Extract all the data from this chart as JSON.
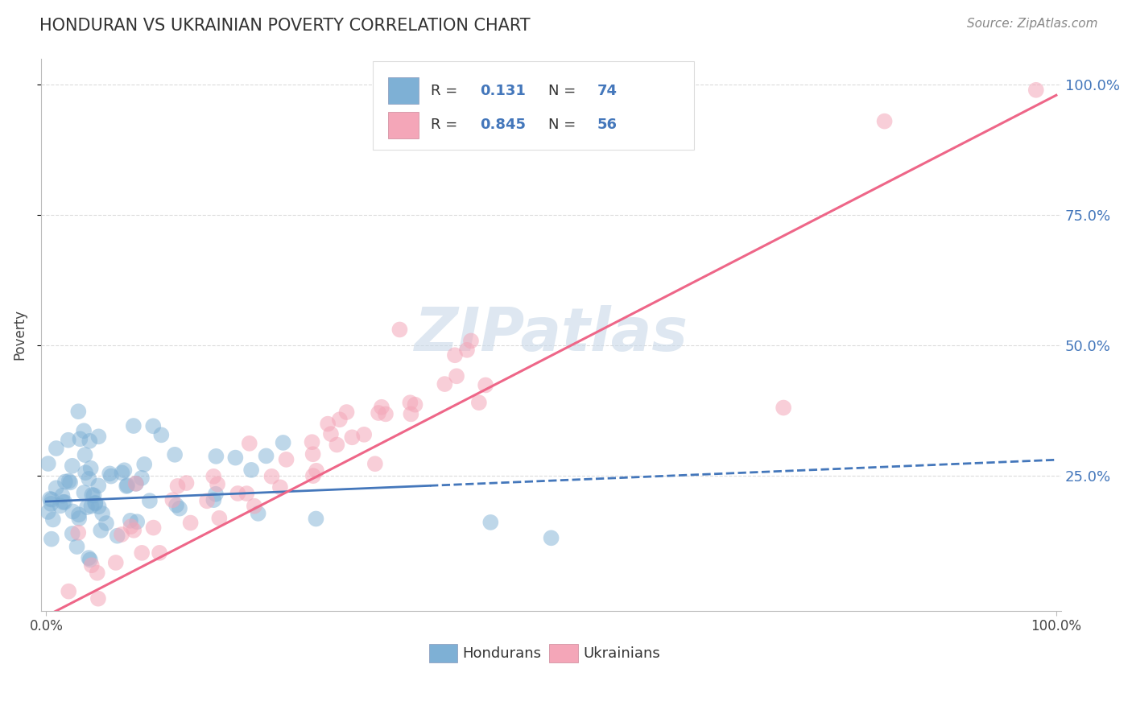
{
  "title": "HONDURAN VS UKRAINIAN POVERTY CORRELATION CHART",
  "source_text": "Source: ZipAtlas.com",
  "ylabel": "Poverty",
  "y_tick_labels": [
    "25.0%",
    "50.0%",
    "75.0%",
    "100.0%"
  ],
  "honduran_R": 0.131,
  "honduran_N": 74,
  "ukrainian_R": 0.845,
  "ukrainian_N": 56,
  "blue_color": "#7EB0D5",
  "pink_color": "#F4A6B8",
  "blue_line_color": "#4477BB",
  "pink_line_color": "#EE6688",
  "legend_label_hondurans": "Hondurans",
  "legend_label_ukrainians": "Ukrainians",
  "watermark_text": "ZIPatlas",
  "background_color": "#FFFFFF",
  "title_color": "#333333",
  "r_n_value_color": "#4477BB",
  "grid_color": "#CCCCCC",
  "title_fontsize": 15,
  "axis_fontsize": 12,
  "legend_fontsize": 13,
  "source_fontsize": 11
}
